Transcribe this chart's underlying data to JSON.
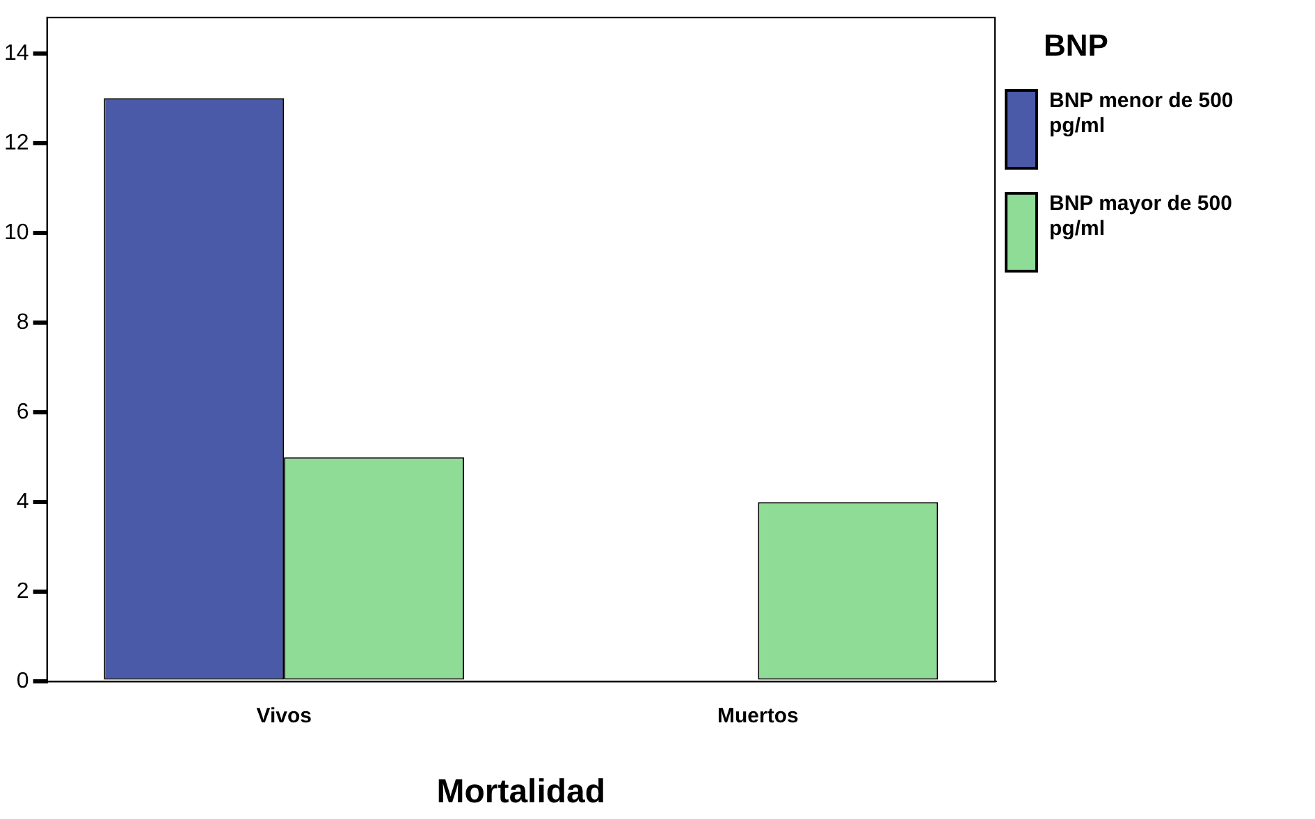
{
  "chart_data": {
    "type": "bar",
    "xlabel": "Mortalidad",
    "legend_title": "BNP",
    "categories": [
      "Vivos",
      "Muertos"
    ],
    "series": [
      {
        "name": "BNP menor de 500 pg/ml",
        "color": "#4a5aa8",
        "values": [
          13,
          null
        ]
      },
      {
        "name": "BNP mayor de 500 pg/ml",
        "color": "#8fdc96",
        "values": [
          5,
          4
        ]
      }
    ],
    "ylim": [
      0,
      14.8
    ],
    "yticks": [
      0,
      2,
      4,
      6,
      8,
      10,
      12,
      14
    ],
    "grid": false,
    "legend": "top right"
  }
}
